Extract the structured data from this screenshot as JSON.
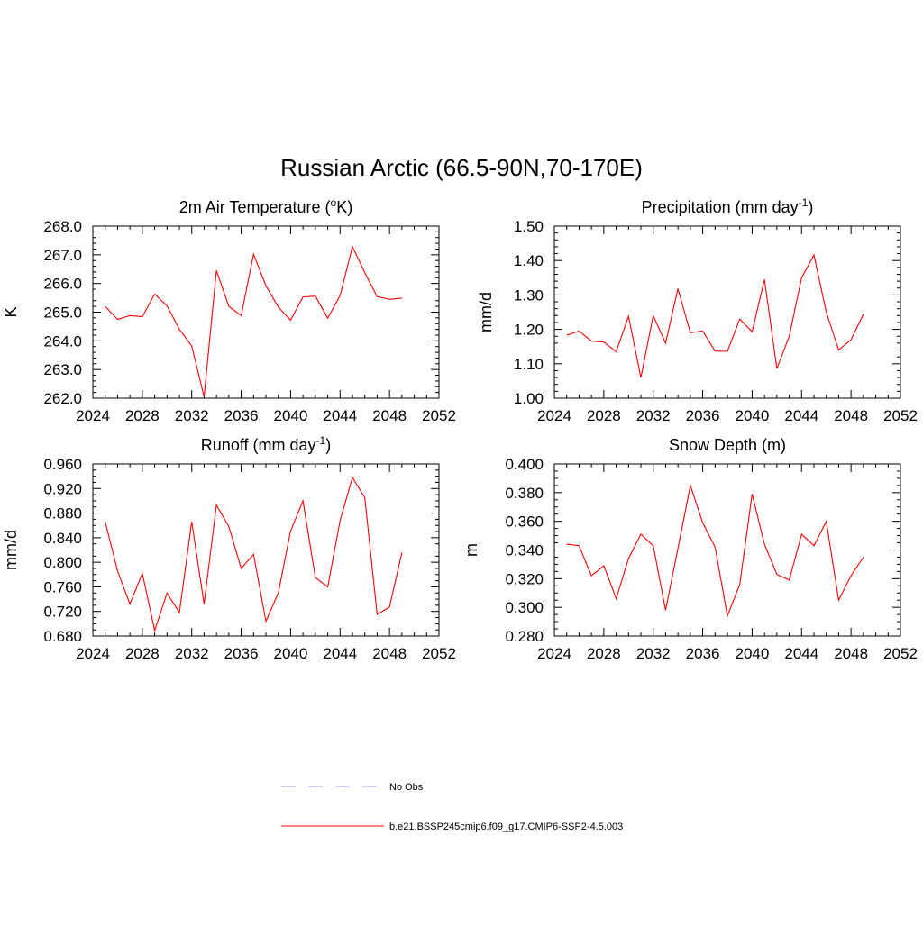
{
  "main_title": "Russian Arctic (66.5-90N,70-170E)",
  "chart_data": [
    {
      "type": "line",
      "title": "2m Air Temperature (",
      "title_sup": "o",
      "title_after": "K)",
      "ylabel": "K",
      "xlim": [
        2024,
        2052
      ],
      "ylim": [
        262.0,
        268.0
      ],
      "xticks": [
        2024,
        2028,
        2032,
        2036,
        2040,
        2044,
        2048,
        2052
      ],
      "xtick_labels": [
        "2024",
        "2028",
        "2032",
        "2036",
        "2040",
        "2044",
        "2048",
        "2052"
      ],
      "yticks": [
        262.0,
        263.0,
        264.0,
        265.0,
        266.0,
        267.0,
        268.0
      ],
      "ytick_labels": [
        "262.0",
        "263.0",
        "264.0",
        "265.0",
        "266.0",
        "267.0",
        "268.0"
      ],
      "yminor": 5,
      "series": [
        {
          "name": "b.e21.BSSP245cmip6.f09_g17.CMIP6-SSP2-4.5.003",
          "color": "#ff0000",
          "x": [
            2025,
            2026,
            2027,
            2028,
            2029,
            2030,
            2031,
            2032,
            2033,
            2034,
            2035,
            2036,
            2037,
            2038,
            2039,
            2040,
            2041,
            2042,
            2043,
            2044,
            2045,
            2046,
            2047,
            2048,
            2049
          ],
          "values": [
            265.2,
            264.75,
            264.88,
            264.84,
            265.63,
            265.22,
            264.4,
            263.82,
            262.05,
            266.45,
            265.2,
            264.88,
            267.02,
            265.92,
            265.18,
            264.72,
            265.53,
            265.56,
            264.79,
            265.58,
            267.28,
            266.38,
            265.54,
            265.45,
            265.49
          ]
        }
      ]
    },
    {
      "type": "line",
      "title": "Precipitation (mm day",
      "title_sup": "-1",
      "title_after": ")",
      "ylabel": "mm/d",
      "xlim": [
        2024,
        2052
      ],
      "ylim": [
        1.0,
        1.5
      ],
      "xticks": [
        2024,
        2028,
        2032,
        2036,
        2040,
        2044,
        2048,
        2052
      ],
      "xtick_labels": [
        "2024",
        "2028",
        "2032",
        "2036",
        "2040",
        "2044",
        "2048",
        "2052"
      ],
      "yticks": [
        1.0,
        1.1,
        1.2,
        1.3,
        1.4,
        1.5
      ],
      "ytick_labels": [
        "1.00",
        "1.10",
        "1.20",
        "1.30",
        "1.40",
        "1.50"
      ],
      "yminor": 5,
      "series": [
        {
          "name": "b.e21.BSSP245cmip6.f09_g17.CMIP6-SSP2-4.5.003",
          "color": "#ff0000",
          "x": [
            2025,
            2026,
            2027,
            2028,
            2029,
            2030,
            2031,
            2032,
            2033,
            2034,
            2035,
            2036,
            2037,
            2038,
            2039,
            2040,
            2041,
            2042,
            2043,
            2044,
            2045,
            2046,
            2047,
            2048,
            2049
          ],
          "values": [
            1.183,
            1.195,
            1.166,
            1.163,
            1.135,
            1.238,
            1.06,
            1.24,
            1.16,
            1.318,
            1.19,
            1.195,
            1.137,
            1.136,
            1.23,
            1.193,
            1.345,
            1.086,
            1.18,
            1.35,
            1.416,
            1.25,
            1.14,
            1.17,
            1.244
          ]
        }
      ]
    },
    {
      "type": "line",
      "title": "Runoff (mm day",
      "title_sup": "-1",
      "title_after": ")",
      "ylabel": "mm/d",
      "xlim": [
        2024,
        2052
      ],
      "ylim": [
        0.68,
        0.96
      ],
      "xticks": [
        2024,
        2028,
        2032,
        2036,
        2040,
        2044,
        2048,
        2052
      ],
      "xtick_labels": [
        "2024",
        "2028",
        "2032",
        "2036",
        "2040",
        "2044",
        "2048",
        "2052"
      ],
      "yticks": [
        0.68,
        0.72,
        0.76,
        0.8,
        0.84,
        0.88,
        0.92,
        0.96
      ],
      "ytick_labels": [
        "0.680",
        "0.720",
        "0.760",
        "0.800",
        "0.840",
        "0.880",
        "0.920",
        "0.960"
      ],
      "yminor": 4,
      "series": [
        {
          "name": "b.e21.BSSP245cmip6.f09_g17.CMIP6-SSP2-4.5.003",
          "color": "#ff0000",
          "x": [
            2025,
            2026,
            2027,
            2028,
            2029,
            2030,
            2031,
            2032,
            2033,
            2034,
            2035,
            2036,
            2037,
            2038,
            2039,
            2040,
            2041,
            2042,
            2043,
            2044,
            2045,
            2046,
            2047,
            2048,
            2049
          ],
          "values": [
            0.866,
            0.786,
            0.732,
            0.782,
            0.689,
            0.75,
            0.718,
            0.866,
            0.732,
            0.893,
            0.858,
            0.79,
            0.813,
            0.704,
            0.75,
            0.851,
            0.9,
            0.775,
            0.76,
            0.868,
            0.938,
            0.905,
            0.715,
            0.727,
            0.816
          ]
        }
      ]
    },
    {
      "type": "line",
      "title": "Snow Depth (m)",
      "title_sup": "",
      "title_after": "",
      "ylabel": "m",
      "xlim": [
        2024,
        2052
      ],
      "ylim": [
        0.28,
        0.4
      ],
      "xticks": [
        2024,
        2028,
        2032,
        2036,
        2040,
        2044,
        2048,
        2052
      ],
      "xtick_labels": [
        "2024",
        "2028",
        "2032",
        "2036",
        "2040",
        "2044",
        "2048",
        "2052"
      ],
      "yticks": [
        0.28,
        0.3,
        0.32,
        0.34,
        0.36,
        0.38,
        0.4
      ],
      "ytick_labels": [
        "0.280",
        "0.300",
        "0.320",
        "0.340",
        "0.360",
        "0.380",
        "0.400"
      ],
      "yminor": 4,
      "series": [
        {
          "name": "b.e21.BSSP245cmip6.f09_g17.CMIP6-SSP2-4.5.003",
          "color": "#ff0000",
          "x": [
            2025,
            2026,
            2027,
            2028,
            2029,
            2030,
            2031,
            2032,
            2033,
            2034,
            2035,
            2036,
            2037,
            2038,
            2039,
            2040,
            2041,
            2042,
            2043,
            2044,
            2045,
            2046,
            2047,
            2048,
            2049
          ],
          "values": [
            0.344,
            0.343,
            0.322,
            0.329,
            0.306,
            0.334,
            0.351,
            0.343,
            0.298,
            0.341,
            0.385,
            0.359,
            0.342,
            0.294,
            0.316,
            0.379,
            0.344,
            0.323,
            0.319,
            0.351,
            0.343,
            0.36,
            0.305,
            0.322,
            0.335
          ]
        }
      ]
    }
  ],
  "legend": [
    {
      "label": "No Obs",
      "color": "#9999ff",
      "dash": true
    },
    {
      "label": "b.e21.BSSP245cmip6.f09_g17.CMIP6-SSP2-4.5.003",
      "color": "#ff0000",
      "dash": false
    }
  ]
}
